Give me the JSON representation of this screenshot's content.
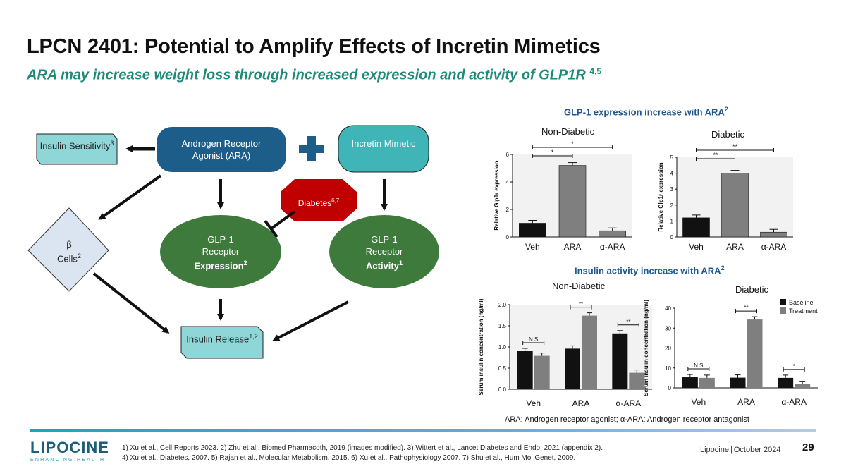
{
  "slide": {
    "title": "LPCN 2401: Potential to Amplify Effects of Incretin Mimetics",
    "subtitle": "ARA may increase weight loss through increased expression and activity of GLP1R",
    "subtitle_refs": "4,5",
    "page_number": "29"
  },
  "diagram": {
    "insulin_sensitivity": {
      "label": "Insulin Sensitivity",
      "ref": "3"
    },
    "ara": {
      "label": "Androgen Receptor Agonist (ARA)"
    },
    "plus_symbol": "+",
    "incretin": {
      "label": "Incretin Mimetic"
    },
    "diabetes": {
      "label": "Diabetes",
      "ref": "6,7"
    },
    "beta_cells": {
      "label1": "β",
      "label2": "Cells",
      "ref": "2"
    },
    "glp1_expression": {
      "line1": "GLP-1",
      "line2": "Receptor",
      "line3": "Expression",
      "ref": "2"
    },
    "glp1_activity": {
      "line1": "GLP-1",
      "line2": "Receptor",
      "line3": "Activity",
      "ref": "1"
    },
    "insulin_release": {
      "label": "Insulin Release",
      "ref": "1,2"
    }
  },
  "panels": {
    "expression_title": "GLP-1 expression increase with ARA",
    "expression_ref": "2",
    "activity_title": "Insulin activity increase with ARA",
    "activity_ref": "2",
    "non_diabetic": "Non-Diabetic",
    "diabetic": "Diabetic",
    "abbreviations": "ARA: Androgen receptor agonist; α-ARA: Androgen receptor antagonist"
  },
  "colors": {
    "dark_blue": "#1d5d8a",
    "teal": "#3fb5b8",
    "light_teal": "#8fd6d9",
    "green": "#3e7a3c",
    "red": "#c00000",
    "bar_dark": "#111111",
    "bar_gray": "#7f7f7f"
  },
  "chart_data": [
    {
      "type": "bar",
      "title": "Non-Diabetic",
      "ylabel": "Relative Glp1r expression",
      "categories": [
        "Veh",
        "ARA",
        "α-ARA"
      ],
      "values": [
        1.0,
        5.2,
        0.45
      ],
      "ylim": [
        0,
        6
      ],
      "yticks": [
        "0",
        "2",
        "4",
        "6"
      ],
      "significance": [
        "*",
        "*"
      ]
    },
    {
      "type": "bar",
      "title": "Diabetic",
      "ylabel": "Relative Glp1r expression",
      "categories": [
        "Veh",
        "ARA",
        "α-ARA"
      ],
      "values": [
        1.2,
        4.0,
        0.3
      ],
      "ylim": [
        0,
        5
      ],
      "yticks": [
        "0",
        "1",
        "2",
        "3",
        "4",
        "5"
      ],
      "significance": [
        "**",
        "**"
      ]
    },
    {
      "type": "bar",
      "title": "Non-Diabetic",
      "ylabel": "Serum insulin concentration (ng/ml)",
      "categories": [
        "Veh",
        "ARA",
        "α-ARA"
      ],
      "series": [
        {
          "name": "Baseline",
          "values": [
            0.9,
            0.96,
            1.32
          ]
        },
        {
          "name": "Treatment",
          "values": [
            0.79,
            1.74,
            0.39
          ]
        }
      ],
      "ylim": [
        0,
        2.0
      ],
      "yticks": [
        "0.0",
        "0.5",
        "1.0",
        "1.5",
        "2.0"
      ],
      "significance": [
        "N.S",
        "**",
        "**"
      ]
    },
    {
      "type": "bar",
      "title": "Diabetic",
      "ylabel": "Serum insulin concentration (ng/ml)",
      "categories": [
        "Veh",
        "ARA",
        "α-ARA"
      ],
      "series": [
        {
          "name": "Baseline",
          "values": [
            5.3,
            5.1,
            5.0
          ]
        },
        {
          "name": "Treatment",
          "values": [
            5.0,
            34.3,
            1.9
          ]
        }
      ],
      "ylim": [
        0,
        40
      ],
      "yticks": [
        "0",
        "10",
        "20",
        "30",
        "40"
      ],
      "significance": [
        "N.S",
        "**",
        "*"
      ],
      "legend": [
        "Baseline",
        "Treatment"
      ]
    }
  ],
  "footer": {
    "company": "Lipocine",
    "date": "October 2024",
    "logo_text": "LIPOCINE",
    "logo_tagline": "ENHANCING HEALTH",
    "footnote_line1": "1) Xu et al., Cell Reports 2023. 2) Zhu et al., Biomed Pharmacoth, 2019 (images modified). 3) Wittert et al., Lancet Diabetes and Endo, 2021 (appendix 2).",
    "footnote_line2": "4) Xu et al., Diabetes, 2007. 5) Rajan et al., Molecular Metabolism. 2015. 6) Xu et al., Pathophysiology 2007. 7) Shu et al., Hum Mol Genet, 2009."
  }
}
